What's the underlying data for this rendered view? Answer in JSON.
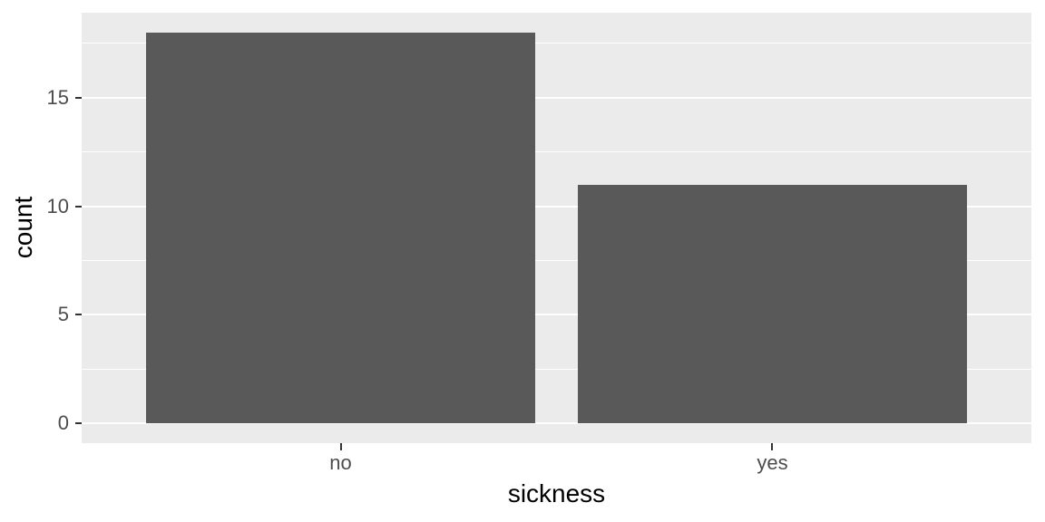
{
  "chart_data": {
    "type": "bar",
    "title": "",
    "xlabel": "sickness",
    "ylabel": "count",
    "categories": [
      "no",
      "yes"
    ],
    "values": [
      18,
      11
    ],
    "yticks": [
      0,
      5,
      10,
      15
    ],
    "ylim_data": [
      0,
      18
    ],
    "y_expand_mult": 0.05,
    "bar_width_fraction": 0.9,
    "grid": true,
    "legend_position": "none",
    "style": "ggplot2-theme-grey",
    "colors": {
      "bar_fill": "#595959",
      "panel_bg": "#EBEBEB",
      "grid_major": "#FFFFFF",
      "grid_minor": "#FFFFFF",
      "tick_label": "#4D4D4D",
      "axis_title": "#000000",
      "tick_mark": "#333333",
      "background": "#FFFFFF"
    }
  }
}
